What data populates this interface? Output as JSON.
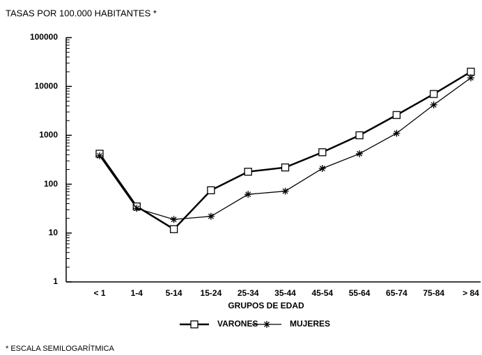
{
  "chart_data": {
    "type": "line",
    "title": "TASAS POR 100.000 HABITANTES *",
    "x_label": "GRUPOS DE EDAD",
    "annotation": "* ESCALA SEMILOGARÍTMICA",
    "categories": [
      "< 1",
      "1-4",
      "5-14",
      "15-24",
      "25-34",
      "35-44",
      "45-54",
      "55-64",
      "65-74",
      "75-84",
      "> 84"
    ],
    "series": [
      {
        "name": "VARONES",
        "color": "#000000",
        "marker": "square",
        "values": [
          420,
          35,
          12,
          75,
          180,
          220,
          450,
          1000,
          2600,
          7000,
          20000
        ]
      },
      {
        "name": "MUJERES",
        "color": "#000000",
        "marker": "asterisk",
        "values": [
          380,
          32,
          19,
          22,
          62,
          72,
          210,
          420,
          1100,
          4200,
          15000
        ]
      }
    ],
    "ylim": [
      1,
      100000
    ],
    "yticks": [
      1,
      10,
      100,
      1000,
      10000,
      100000
    ],
    "log_scale_y": true,
    "grid": false
  }
}
